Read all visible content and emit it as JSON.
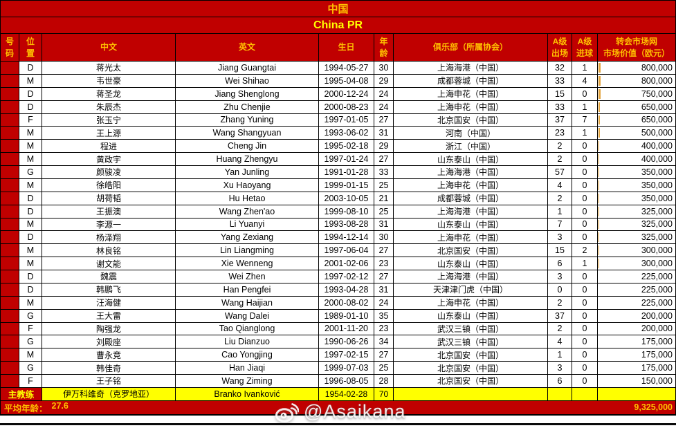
{
  "title": {
    "cn": "中国",
    "en": "China PR"
  },
  "colors": {
    "header_red": "#C00000",
    "gold_text": "#FFC000",
    "yellow_text": "#FFFF00",
    "coach_row_yellow": "#FFFF00",
    "databar_amber": "#E2A33C"
  },
  "columns": [
    {
      "key": "number",
      "label": "号\n码"
    },
    {
      "key": "position",
      "label": "位\n置"
    },
    {
      "key": "name_cn",
      "label": "中文"
    },
    {
      "key": "name_en",
      "label": "英文"
    },
    {
      "key": "dob",
      "label": "生日"
    },
    {
      "key": "age",
      "label": "年\n龄"
    },
    {
      "key": "club",
      "label": "俱乐部（所属协会）"
    },
    {
      "key": "caps",
      "label": "A级\n出场"
    },
    {
      "key": "goals",
      "label": "A级\n进球"
    },
    {
      "key": "value",
      "label": "转会市场网\n市场价值（欧元）"
    }
  ],
  "players": [
    {
      "pos": "D",
      "name_cn": "蒋光太",
      "name_en": "Jiang Guangtai",
      "dob": "1994-05-27",
      "age": "30",
      "club": "上海海港（中国）",
      "caps": "32",
      "goals": "1",
      "value": "800,000"
    },
    {
      "pos": "M",
      "name_cn": "韦世豪",
      "name_en": "Wei Shihao",
      "dob": "1995-04-08",
      "age": "29",
      "club": "成都蓉城（中国）",
      "caps": "33",
      "goals": "4",
      "value": "800,000"
    },
    {
      "pos": "D",
      "name_cn": "蒋圣龙",
      "name_en": "Jiang Shenglong",
      "dob": "2000-12-24",
      "age": "24",
      "club": "上海申花（中国）",
      "caps": "15",
      "goals": "0",
      "value": "750,000"
    },
    {
      "pos": "D",
      "name_cn": "朱辰杰",
      "name_en": "Zhu Chenjie",
      "dob": "2000-08-23",
      "age": "24",
      "club": "上海申花（中国）",
      "caps": "33",
      "goals": "1",
      "value": "650,000"
    },
    {
      "pos": "F",
      "name_cn": "张玉宁",
      "name_en": "Zhang Yuning",
      "dob": "1997-01-05",
      "age": "27",
      "club": "北京国安（中国）",
      "caps": "37",
      "goals": "7",
      "value": "650,000"
    },
    {
      "pos": "M",
      "name_cn": "王上源",
      "name_en": "Wang Shangyuan",
      "dob": "1993-06-02",
      "age": "31",
      "club": "河南（中国）",
      "caps": "23",
      "goals": "1",
      "value": "500,000"
    },
    {
      "pos": "M",
      "name_cn": "程进",
      "name_en": "Cheng Jin",
      "dob": "1995-02-18",
      "age": "29",
      "club": "浙江（中国）",
      "caps": "2",
      "goals": "0",
      "value": "400,000"
    },
    {
      "pos": "M",
      "name_cn": "黄政宇",
      "name_en": "Huang Zhengyu",
      "dob": "1997-01-24",
      "age": "27",
      "club": "山东泰山（中国）",
      "caps": "2",
      "goals": "0",
      "value": "400,000"
    },
    {
      "pos": "G",
      "name_cn": "颜骏凌",
      "name_en": "Yan Junling",
      "dob": "1991-01-28",
      "age": "33",
      "club": "上海海港（中国）",
      "caps": "57",
      "goals": "0",
      "value": "350,000"
    },
    {
      "pos": "M",
      "name_cn": "徐皓阳",
      "name_en": "Xu Haoyang",
      "dob": "1999-01-15",
      "age": "25",
      "club": "上海申花（中国）",
      "caps": "4",
      "goals": "0",
      "value": "350,000"
    },
    {
      "pos": "D",
      "name_cn": "胡荷韬",
      "name_en": "Hu Hetao",
      "dob": "2003-10-05",
      "age": "21",
      "club": "成都蓉城（中国）",
      "caps": "2",
      "goals": "0",
      "value": "350,000"
    },
    {
      "pos": "D",
      "name_cn": "王振澳",
      "name_en": "Wang Zhen'ao",
      "dob": "1999-08-10",
      "age": "25",
      "club": "上海海港（中国）",
      "caps": "1",
      "goals": "0",
      "value": "325,000"
    },
    {
      "pos": "M",
      "name_cn": "李源一",
      "name_en": "Li Yuanyi",
      "dob": "1993-08-28",
      "age": "31",
      "club": "山东泰山（中国）",
      "caps": "7",
      "goals": "0",
      "value": "325,000"
    },
    {
      "pos": "D",
      "name_cn": "杨泽翔",
      "name_en": "Yang Zexiang",
      "dob": "1994-12-14",
      "age": "30",
      "club": "上海申花（中国）",
      "caps": "3",
      "goals": "0",
      "value": "325,000"
    },
    {
      "pos": "M",
      "name_cn": "林良铭",
      "name_en": "Lin Liangming",
      "dob": "1997-06-04",
      "age": "27",
      "club": "北京国安（中国）",
      "caps": "15",
      "goals": "2",
      "value": "300,000"
    },
    {
      "pos": "M",
      "name_cn": "谢文能",
      "name_en": "Xie Wenneng",
      "dob": "2001-02-06",
      "age": "23",
      "club": "山东泰山（中国）",
      "caps": "6",
      "goals": "1",
      "value": "300,000"
    },
    {
      "pos": "D",
      "name_cn": "魏震",
      "name_en": "Wei Zhen",
      "dob": "1997-02-12",
      "age": "27",
      "club": "上海海港（中国）",
      "caps": "3",
      "goals": "0",
      "value": "225,000"
    },
    {
      "pos": "D",
      "name_cn": "韩鹏飞",
      "name_en": "Han Pengfei",
      "dob": "1993-04-28",
      "age": "31",
      "club": "天津津门虎（中国）",
      "caps": "0",
      "goals": "0",
      "value": "225,000"
    },
    {
      "pos": "M",
      "name_cn": "汪海健",
      "name_en": "Wang Haijian",
      "dob": "2000-08-02",
      "age": "24",
      "club": "上海申花（中国）",
      "caps": "2",
      "goals": "0",
      "value": "225,000"
    },
    {
      "pos": "G",
      "name_cn": "王大雷",
      "name_en": "Wang Dalei",
      "dob": "1989-01-10",
      "age": "35",
      "club": "山东泰山（中国）",
      "caps": "37",
      "goals": "0",
      "value": "200,000"
    },
    {
      "pos": "F",
      "name_cn": "陶强龙",
      "name_en": "Tao Qianglong",
      "dob": "2001-11-20",
      "age": "23",
      "club": "武汉三镇（中国）",
      "caps": "2",
      "goals": "0",
      "value": "200,000"
    },
    {
      "pos": "G",
      "name_cn": "刘殿座",
      "name_en": "Liu Dianzuo",
      "dob": "1990-06-26",
      "age": "34",
      "club": "武汉三镇（中国）",
      "caps": "4",
      "goals": "0",
      "value": "175,000"
    },
    {
      "pos": "M",
      "name_cn": "曹永竞",
      "name_en": "Cao Yongjing",
      "dob": "1997-02-15",
      "age": "27",
      "club": "北京国安（中国）",
      "caps": "1",
      "goals": "0",
      "value": "175,000"
    },
    {
      "pos": "G",
      "name_cn": "韩佳奇",
      "name_en": "Han Jiaqi",
      "dob": "1999-07-03",
      "age": "25",
      "club": "北京国安（中国）",
      "caps": "3",
      "goals": "0",
      "value": "175,000"
    },
    {
      "pos": "F",
      "name_cn": "王子铭",
      "name_en": "Wang Ziming",
      "dob": "1996-08-05",
      "age": "28",
      "club": "北京国安（中国）",
      "caps": "6",
      "goals": "0",
      "value": "150,000"
    }
  ],
  "coach": {
    "label": "主教练",
    "name_cn": "伊万科维奇（克罗地亚）",
    "name_en": "Branko Ivanković",
    "dob": "1954-02-28",
    "age": "70"
  },
  "footer": {
    "avg_label": "平均年龄：",
    "avg_value": "27.6",
    "total_value": "9,325,000"
  },
  "watermark": {
    "handle": "@Asaikana",
    "icon": "weibo-icon"
  }
}
